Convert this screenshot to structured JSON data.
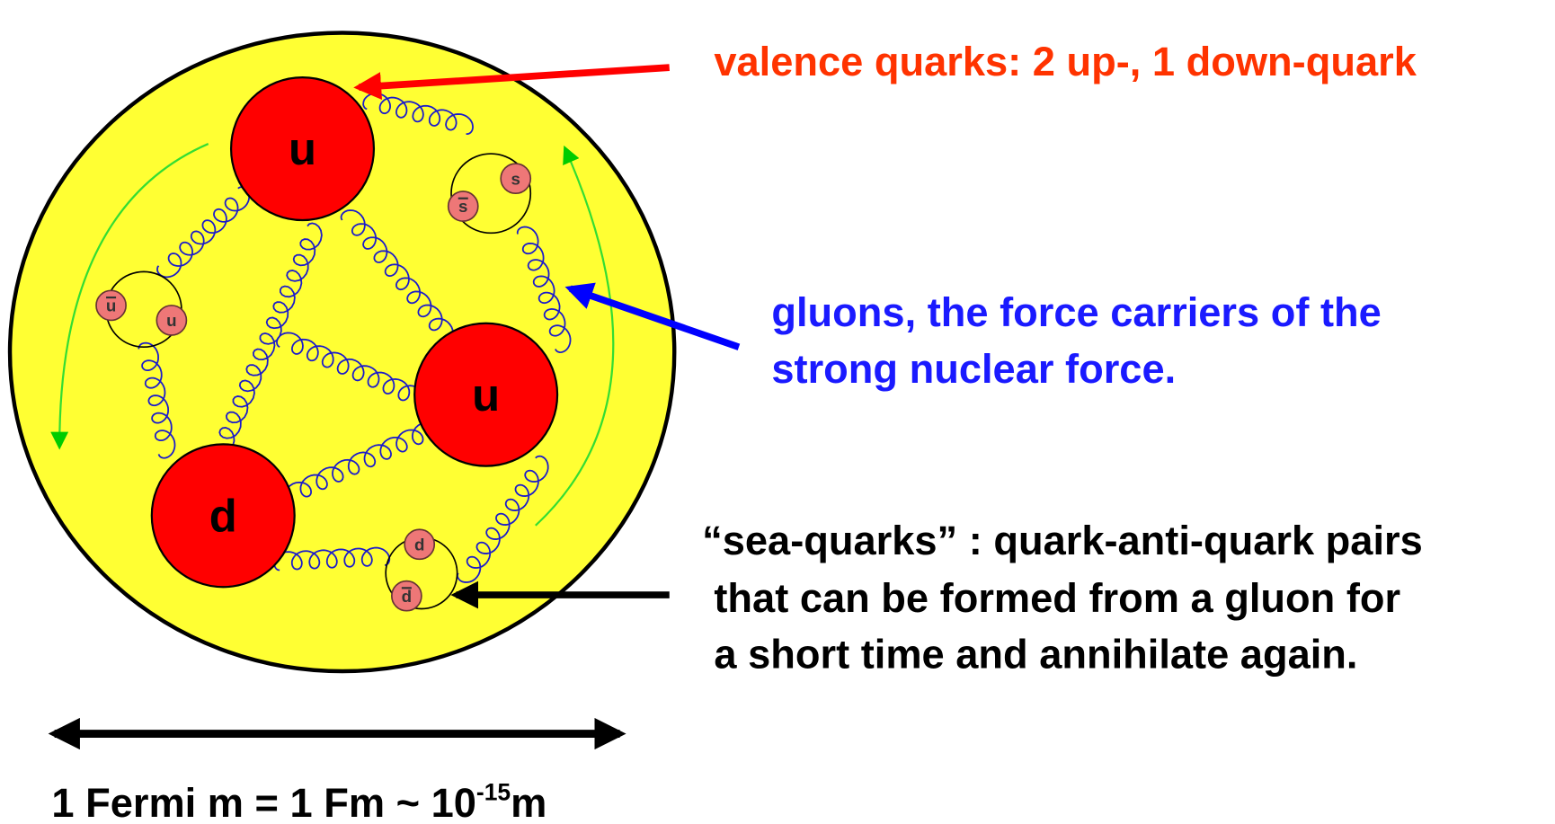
{
  "diagram": {
    "quarks": [
      {
        "label": "u"
      },
      {
        "label": "u"
      },
      {
        "label": "d"
      }
    ],
    "sea_quarks": [
      {
        "label": "u"
      },
      {
        "label": "u"
      },
      {
        "label": "s"
      },
      {
        "label": "s"
      },
      {
        "label": "d"
      },
      {
        "label": "d"
      }
    ],
    "annotations": [
      {
        "lines": [
          "valence quarks: 2 up-, 1 down-quark"
        ]
      },
      {
        "lines": [
          "gluons, the force carriers of the",
          "strong nuclear force."
        ]
      },
      {
        "lines": [
          "“sea-quarks” : quark-anti-quark pairs",
          "that can be formed from a gluon for",
          "a short time and annihilate again."
        ]
      }
    ],
    "scale": {
      "text": "1 Fermi m = 1 Fm ~ 10",
      "exponent": "-15",
      "unit": "m"
    }
  }
}
